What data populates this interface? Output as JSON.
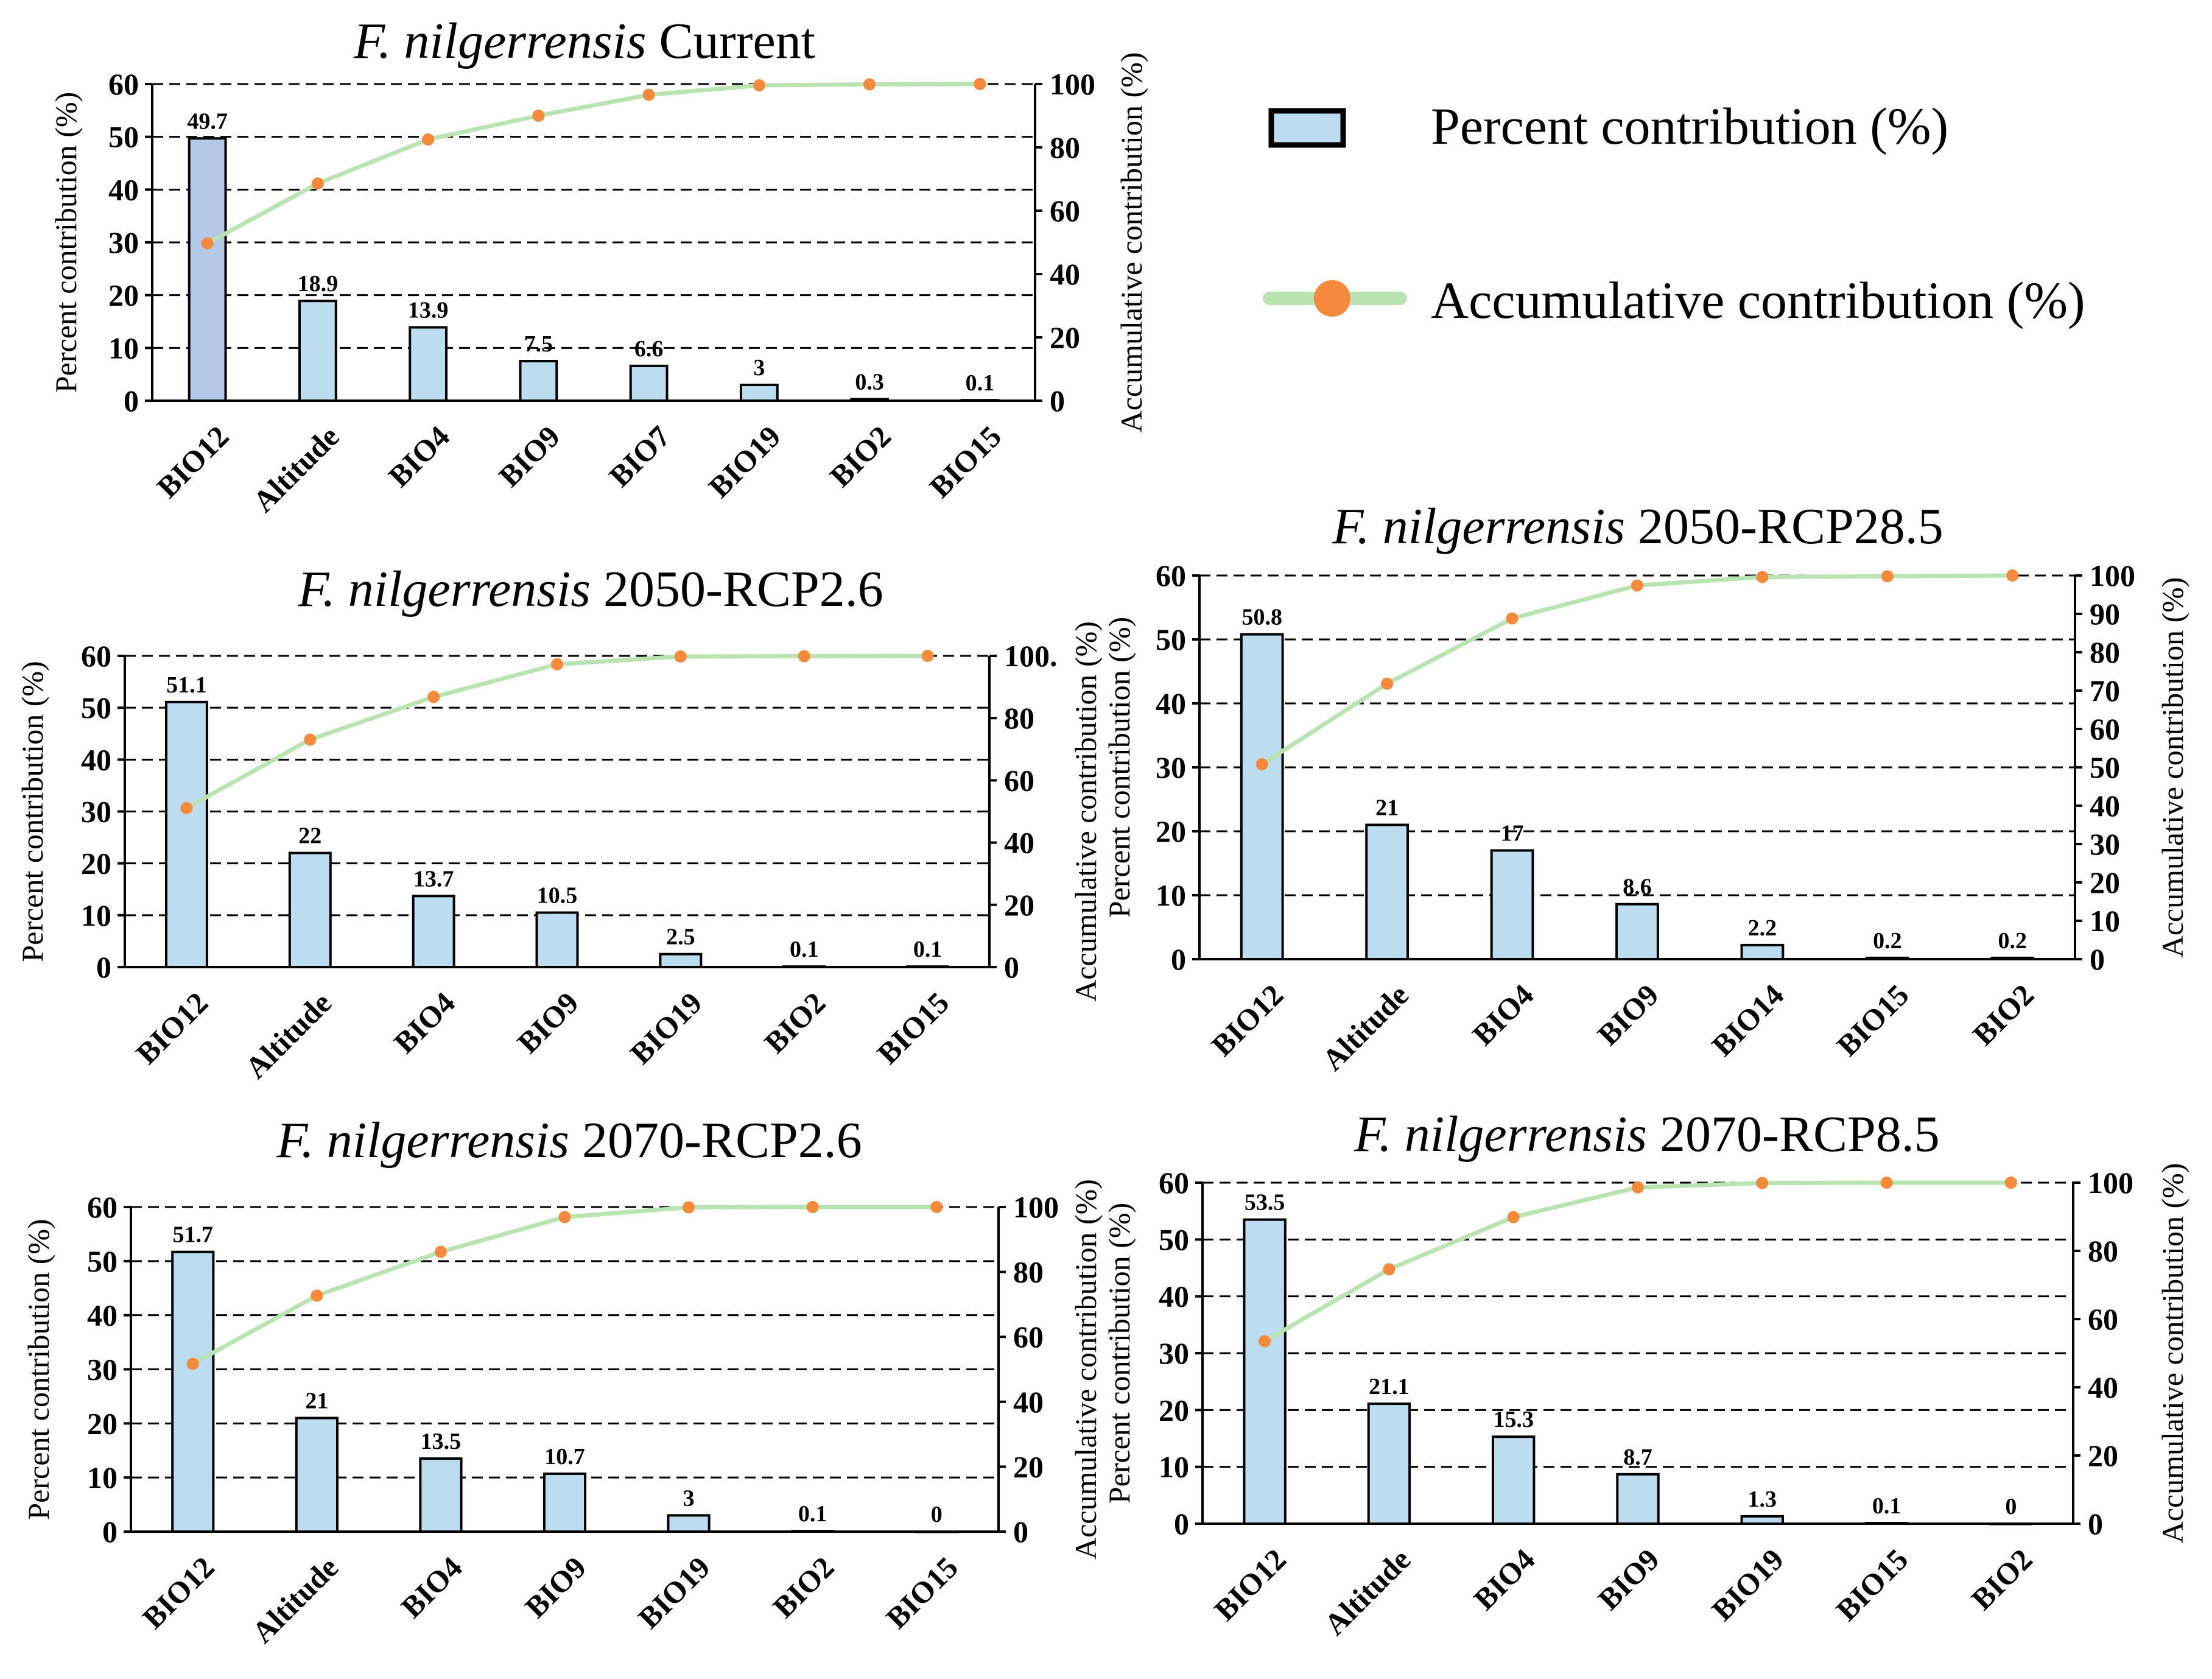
{
  "colors": {
    "bar_fill": "#bcdcf0",
    "bar_fill_first": "#b4c8e8",
    "bar_stroke": "#000000",
    "line": "#b9e3b0",
    "marker": "#f58a3c",
    "grid": "#000000"
  },
  "legend": {
    "bar_label": "Percent contribution (%)",
    "line_label": "Accumulative contribution (%)"
  },
  "chart_data": [
    {
      "type": "bar",
      "species": "F. nilgerrensis",
      "title_rest": "Current",
      "ylabel": "Percent contribution (%)",
      "y2label": "Accumulative contribution (%)",
      "ylim": [
        0,
        60
      ],
      "yticks": [
        0,
        10,
        20,
        30,
        40,
        50,
        60
      ],
      "y2lim": [
        0,
        100
      ],
      "y2ticks": [
        "0",
        "20",
        "40",
        "60",
        "80",
        "100"
      ],
      "categories": [
        "BIO12",
        "Altitude",
        "BIO4",
        "BIO9",
        "BIO7",
        "BIO19",
        "BIO2",
        "BIO15"
      ],
      "series": [
        {
          "name": "Percent contribution (%)",
          "values": [
            49.7,
            18.9,
            13.9,
            7.5,
            6.6,
            3,
            0.3,
            0.1
          ],
          "labels": [
            "49.7",
            "18.9",
            "13.9",
            "7.5",
            "6.6",
            "3",
            "0.3",
            "0.1"
          ]
        },
        {
          "name": "Accumulative contribution (%)",
          "values": [
            49.7,
            68.6,
            82.5,
            90.0,
            96.6,
            99.6,
            99.9,
            100
          ]
        }
      ],
      "grid": true
    },
    {
      "type": "bar",
      "species": "F. nilgerrensis",
      "title_rest": "2050-RCP2.6",
      "ylabel": "Percent contribution (%)",
      "y2label": "Accumulative contribution (%)",
      "ylim": [
        0,
        60
      ],
      "yticks": [
        0,
        10,
        20,
        30,
        40,
        50,
        60
      ],
      "y2lim": [
        0,
        100
      ],
      "y2ticks": [
        "0",
        "20",
        "40",
        "60",
        "80",
        "100."
      ],
      "categories": [
        "BIO12",
        "Altitude",
        "BIO4",
        "BIO9",
        "BIO19",
        "BIO2",
        "BIO15"
      ],
      "series": [
        {
          "name": "Percent contribution (%)",
          "values": [
            51.1,
            22,
            13.7,
            10.5,
            2.5,
            0.1,
            0.1
          ],
          "labels": [
            "51.1",
            "22",
            "13.7",
            "10.5",
            "2.5",
            "0.1",
            "0.1"
          ]
        },
        {
          "name": "Accumulative contribution (%)",
          "values": [
            51.1,
            73.1,
            86.8,
            97.3,
            99.8,
            99.9,
            100
          ]
        }
      ],
      "grid": true
    },
    {
      "type": "bar",
      "species": "F. nilgerrensis",
      "title_rest": "2050-RCP28.5",
      "ylabel": "Percent contribution (%)",
      "y2label": "Accumulative contribution (%)",
      "ylim": [
        0,
        60
      ],
      "yticks": [
        0,
        10,
        20,
        30,
        40,
        50,
        60
      ],
      "y2lim": [
        0,
        100
      ],
      "y2ticks": [
        "0",
        "10",
        "20",
        "30",
        "40",
        "50",
        "60",
        "70",
        "80",
        "90",
        "100"
      ],
      "categories": [
        "BIO12",
        "Altitude",
        "BIO4",
        "BIO9",
        "BIO14",
        "BIO15",
        "BIO2"
      ],
      "series": [
        {
          "name": "Percent contribution (%)",
          "values": [
            50.8,
            21,
            17,
            8.6,
            2.2,
            0.2,
            0.2
          ],
          "labels": [
            "50.8",
            "21",
            "17",
            "8.6",
            "2.2",
            "0.2",
            "0.2"
          ]
        },
        {
          "name": "Accumulative contribution (%)",
          "values": [
            50.8,
            71.8,
            88.8,
            97.4,
            99.6,
            99.8,
            100
          ]
        }
      ],
      "grid": true
    },
    {
      "type": "bar",
      "species": "F. nilgerrensis",
      "title_rest": "2070-RCP2.6",
      "ylabel": "Percent contribution (%)",
      "y2label": "Accumulative contribution (%)",
      "ylim": [
        0,
        60
      ],
      "yticks": [
        0,
        10,
        20,
        30,
        40,
        50,
        60
      ],
      "y2lim": [
        0,
        100
      ],
      "y2ticks": [
        "0",
        "20",
        "40",
        "60",
        "80",
        "100"
      ],
      "categories": [
        "BIO12",
        "Altitude",
        "BIO4",
        "BIO9",
        "BIO19",
        "BIO2",
        "BIO15"
      ],
      "series": [
        {
          "name": "Percent contribution (%)",
          "values": [
            51.7,
            21,
            13.5,
            10.7,
            3,
            0.1,
            0
          ],
          "labels": [
            "51.7",
            "21",
            "13.5",
            "10.7",
            "3",
            "0.1",
            "0"
          ]
        },
        {
          "name": "Accumulative contribution (%)",
          "values": [
            51.7,
            72.7,
            86.2,
            96.9,
            99.9,
            100,
            100
          ]
        }
      ],
      "grid": true
    },
    {
      "type": "bar",
      "species": "F. nilgerrensis",
      "title_rest": "2070-RCP8.5",
      "ylabel": "Percent contribution (%)",
      "y2label": "Accumulative contribution (%)",
      "ylim": [
        0,
        60
      ],
      "yticks": [
        0,
        10,
        20,
        30,
        40,
        50,
        60
      ],
      "y2lim": [
        0,
        100
      ],
      "y2ticks": [
        "0",
        "20",
        "40",
        "60",
        "80",
        "100"
      ],
      "categories": [
        "BIO12",
        "Altitude",
        "BIO4",
        "BIO9",
        "BIO19",
        "BIO15",
        "BIO2"
      ],
      "series": [
        {
          "name": "Percent contribution (%)",
          "values": [
            53.5,
            21.1,
            15.3,
            8.7,
            1.3,
            0.1,
            0
          ],
          "labels": [
            "53.5",
            "21.1",
            "15.3",
            "8.7",
            "1.3",
            "0.1",
            "0"
          ]
        },
        {
          "name": "Accumulative contribution (%)",
          "values": [
            53.5,
            74.6,
            89.9,
            98.6,
            99.9,
            100,
            100
          ]
        }
      ],
      "grid": true
    }
  ]
}
